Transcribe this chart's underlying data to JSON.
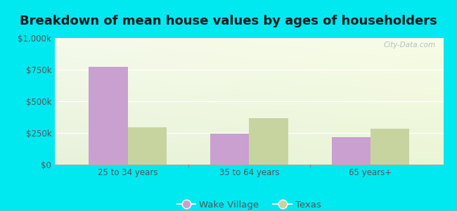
{
  "title": "Breakdown of mean house values by ages of householders",
  "categories": [
    "25 to 34 years",
    "35 to 64 years",
    "65 years+"
  ],
  "wake_village": [
    775000,
    245000,
    215000
  ],
  "texas": [
    295000,
    365000,
    285000
  ],
  "wake_village_color": "#c9a0d0",
  "texas_color": "#c8d4a0",
  "ylim": [
    0,
    1000000
  ],
  "yticks": [
    0,
    250000,
    500000,
    750000,
    1000000
  ],
  "ytick_labels": [
    "$0",
    "$250k",
    "$500k",
    "$750k",
    "$1,000k"
  ],
  "legend_wake": "Wake Village",
  "legend_texas": "Texas",
  "background_outer": "#00e8f0",
  "bar_width": 0.32,
  "title_fontsize": 13,
  "tick_fontsize": 8.5,
  "legend_fontsize": 9.5,
  "watermark_text": "City-Data.com",
  "tick_color": "#555555",
  "title_color": "#1a1a1a"
}
